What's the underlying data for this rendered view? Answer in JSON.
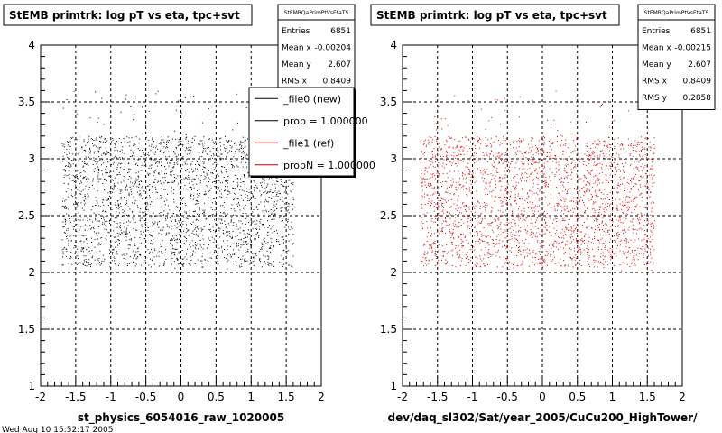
{
  "chart_data": [
    {
      "type": "scatter",
      "title": "StEMB primtrk: log pT vs eta, tpc+svt",
      "xlabel": "st_physics_6054016_raw_1020005",
      "ylabel": "",
      "xlim": [
        -2,
        2
      ],
      "ylim": [
        1,
        4
      ],
      "xticks": [
        "-2",
        "-1.5",
        "-1",
        "-0.5",
        "0",
        "0.5",
        "1",
        "1.5",
        "2"
      ],
      "yticks": [
        "1",
        "1.5",
        "2",
        "2.5",
        "3",
        "3.5",
        "4"
      ],
      "grid": true,
      "marker_color": "#000000",
      "distribution": {
        "x_min": -1.7,
        "x_max": 1.6,
        "y_min": 2.0,
        "y_max": 3.6,
        "y_core_min": 2.05,
        "y_core_max": 3.2
      },
      "stats": {
        "name": "StEMBQaPrimPtVsEtaTS",
        "rows": [
          {
            "label": "Entries",
            "value": "6851"
          },
          {
            "label": "Mean x",
            "value": "-0.00204"
          },
          {
            "label": "Mean y",
            "value": "2.607"
          },
          {
            "label": "RMS x",
            "value": "0.8409"
          }
        ]
      },
      "legend": {
        "position": "top-right",
        "entries": [
          {
            "label": "_file0 (new)",
            "color": "#000000"
          },
          {
            "label": "prob = 1.000000",
            "color": "#000000"
          },
          {
            "label": "_file1 (ref)",
            "color": "#cc0000"
          },
          {
            "label": "probN = 1.000000",
            "color": "#cc0000"
          }
        ]
      }
    },
    {
      "type": "scatter",
      "title": "StEMB primtrk: log pT vs eta, tpc+svt",
      "xlabel": "dev/daq_sl302/Sat/year_2005/CuCu200_HighTower/",
      "ylabel": "",
      "xlim": [
        -2,
        2
      ],
      "ylim": [
        1,
        4
      ],
      "xticks": [
        "-2",
        "-1.5",
        "-1",
        "-0.5",
        "0",
        "0.5",
        "1",
        "1.5",
        "2"
      ],
      "yticks": [
        "1",
        "1.5",
        "2",
        "2.5",
        "3",
        "3.5",
        "4"
      ],
      "grid": true,
      "marker_color": "#dd0000",
      "distribution": {
        "x_min": -1.75,
        "x_max": 1.6,
        "y_min": 2.0,
        "y_max": 3.6,
        "y_core_min": 2.05,
        "y_core_max": 3.2
      },
      "stats": {
        "name": "StEMBQaPrimPtVsEtaTS",
        "rows": [
          {
            "label": "Entries",
            "value": "6851"
          },
          {
            "label": "Mean x",
            "value": "-0.00215"
          },
          {
            "label": "Mean y",
            "value": "2.607"
          },
          {
            "label": "RMS x",
            "value": "0.8409"
          },
          {
            "label": "RMS y",
            "value": "0.2858"
          }
        ]
      }
    }
  ],
  "footer_text": "Wed Aug 10 15:52:17 2005"
}
